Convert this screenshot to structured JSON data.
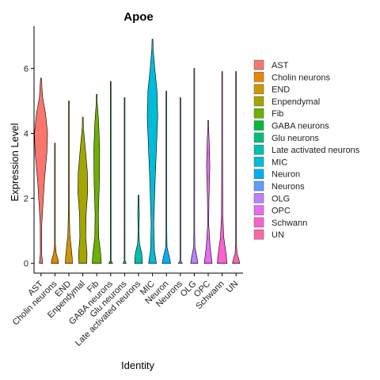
{
  "chart_data": {
    "type": "violin",
    "title": "Apoe",
    "xlabel": "Identity",
    "ylabel": "Expression Level",
    "ylim": [
      -0.3,
      7.3
    ],
    "yticks": [
      0,
      2,
      4,
      6
    ],
    "grid": false,
    "legend": "right",
    "categories": [
      "AST",
      "Cholin neurons",
      "END",
      "Enpendymal",
      "Fib",
      "GABA neurons",
      "Glu neurons",
      "Late activated neurons",
      "MIC",
      "Neuron",
      "Neurons",
      "OLG",
      "OPC",
      "Schwann",
      "UN"
    ],
    "colors": [
      "#F8766D",
      "#E58700",
      "#C99800",
      "#A3A500",
      "#6BB100",
      "#00BA38",
      "#00BF7D",
      "#00C0AF",
      "#00BCD8",
      "#00B0F6",
      "#619CFF",
      "#B983FF",
      "#E76BF3",
      "#FD61D1",
      "#FF67A4"
    ],
    "series": [
      {
        "name": "AST",
        "min": 0,
        "max": 5.7,
        "profile": [
          [
            0,
            0.25
          ],
          [
            0.3,
            0.1
          ],
          [
            1.2,
            0.12
          ],
          [
            2.5,
            0.5
          ],
          [
            3.4,
            0.9
          ],
          [
            4.0,
            1.0
          ],
          [
            4.6,
            0.7
          ],
          [
            5.1,
            0.25
          ],
          [
            5.7,
            0.02
          ]
        ]
      },
      {
        "name": "Cholin neurons",
        "min": 0,
        "max": 3.7,
        "profile": [
          [
            0,
            0.55
          ],
          [
            0.1,
            0.5
          ],
          [
            0.3,
            0.2
          ],
          [
            0.6,
            0.03
          ],
          [
            3.7,
            0.01
          ]
        ]
      },
      {
        "name": "END",
        "min": 0,
        "max": 5.0,
        "profile": [
          [
            0,
            0.55
          ],
          [
            0.2,
            0.5
          ],
          [
            0.5,
            0.35
          ],
          [
            0.9,
            0.15
          ],
          [
            1.6,
            0.07
          ],
          [
            3.0,
            0.03
          ],
          [
            5.0,
            0.01
          ]
        ]
      },
      {
        "name": "Enpendymal",
        "min": 0,
        "max": 4.5,
        "profile": [
          [
            0,
            0.6
          ],
          [
            0.3,
            0.65
          ],
          [
            0.8,
            0.45
          ],
          [
            1.5,
            0.5
          ],
          [
            2.2,
            0.75
          ],
          [
            2.8,
            0.7
          ],
          [
            3.5,
            0.4
          ],
          [
            4.2,
            0.08
          ],
          [
            4.5,
            0.01
          ]
        ]
      },
      {
        "name": "Fib",
        "min": 0,
        "max": 5.2,
        "profile": [
          [
            0,
            0.7
          ],
          [
            0.3,
            0.6
          ],
          [
            0.8,
            0.3
          ],
          [
            1.5,
            0.25
          ],
          [
            2.5,
            0.4
          ],
          [
            3.5,
            0.45
          ],
          [
            4.3,
            0.3
          ],
          [
            5.0,
            0.05
          ],
          [
            5.2,
            0.01
          ]
        ]
      },
      {
        "name": "GABA neurons",
        "min": 0,
        "max": 5.6,
        "profile": [
          [
            0,
            0.3
          ],
          [
            0.08,
            0.05
          ],
          [
            0.3,
            0.01
          ],
          [
            5.6,
            0.005
          ]
        ]
      },
      {
        "name": "Glu neurons",
        "min": 0,
        "max": 5.1,
        "profile": [
          [
            0,
            0.25
          ],
          [
            0.08,
            0.05
          ],
          [
            0.3,
            0.01
          ],
          [
            5.1,
            0.005
          ]
        ]
      },
      {
        "name": "Late activated neurons",
        "min": 0,
        "max": 2.1,
        "profile": [
          [
            0,
            0.6
          ],
          [
            0.3,
            0.5
          ],
          [
            0.6,
            0.15
          ],
          [
            1.0,
            0.05
          ],
          [
            1.5,
            0.12
          ],
          [
            1.9,
            0.08
          ],
          [
            2.1,
            0.01
          ]
        ]
      },
      {
        "name": "MIC",
        "min": 0,
        "max": 6.9,
        "profile": [
          [
            0,
            0.6
          ],
          [
            0.4,
            0.3
          ],
          [
            1.2,
            0.2
          ],
          [
            2.5,
            0.4
          ],
          [
            3.5,
            0.6
          ],
          [
            4.5,
            0.8
          ],
          [
            5.3,
            0.7
          ],
          [
            6.0,
            0.35
          ],
          [
            6.6,
            0.1
          ],
          [
            6.9,
            0.01
          ]
        ]
      },
      {
        "name": "Neuron",
        "min": 0,
        "max": 5.3,
        "profile": [
          [
            0,
            0.65
          ],
          [
            0.2,
            0.45
          ],
          [
            0.5,
            0.1
          ],
          [
            1.0,
            0.03
          ],
          [
            5.3,
            0.01
          ]
        ]
      },
      {
        "name": "Neurons",
        "min": 0,
        "max": 5.1,
        "profile": [
          [
            0,
            0.3
          ],
          [
            0.08,
            0.05
          ],
          [
            0.3,
            0.01
          ],
          [
            5.1,
            0.005
          ]
        ]
      },
      {
        "name": "OLG",
        "min": 0,
        "max": 6.0,
        "profile": [
          [
            0,
            0.55
          ],
          [
            0.2,
            0.4
          ],
          [
            0.5,
            0.1
          ],
          [
            1.0,
            0.03
          ],
          [
            6.0,
            0.01
          ]
        ]
      },
      {
        "name": "OPC",
        "min": 0,
        "max": 4.4,
        "profile": [
          [
            0,
            0.6
          ],
          [
            0.5,
            0.3
          ],
          [
            1.2,
            0.08
          ],
          [
            2.0,
            0.12
          ],
          [
            3.0,
            0.25
          ],
          [
            3.6,
            0.18
          ],
          [
            4.2,
            0.05
          ],
          [
            4.4,
            0.01
          ]
        ]
      },
      {
        "name": "Schwann",
        "min": 0,
        "max": 5.9,
        "profile": [
          [
            0,
            0.75
          ],
          [
            0.3,
            0.6
          ],
          [
            0.8,
            0.25
          ],
          [
            1.5,
            0.1
          ],
          [
            2.5,
            0.08
          ],
          [
            3.5,
            0.06
          ],
          [
            4.5,
            0.02
          ],
          [
            5.9,
            0.01
          ]
        ]
      },
      {
        "name": "UN",
        "min": 0,
        "max": 5.9,
        "profile": [
          [
            0,
            0.55
          ],
          [
            0.1,
            0.45
          ],
          [
            0.3,
            0.15
          ],
          [
            0.6,
            0.03
          ],
          [
            5.9,
            0.01
          ]
        ]
      }
    ]
  }
}
